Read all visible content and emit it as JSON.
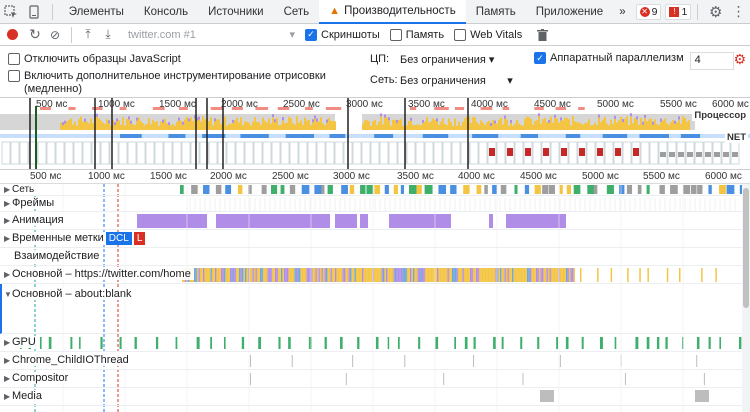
{
  "tabs": {
    "items": [
      "Элементы",
      "Консоль",
      "Источники",
      "Сеть",
      "Производительность",
      "Память",
      "Приложение"
    ],
    "active_index": 4,
    "errors_count": "9",
    "issues_count": "1"
  },
  "toolbar": {
    "url_placeholder": "twitter.com #1",
    "screenshots_label": "Скриншоты",
    "memory_label": "Память",
    "webvitals_label": "Web Vitals"
  },
  "settings": {
    "disable_js_samples": "Отключить образцы JavaScript",
    "advanced_paint_line1": "Включить дополнительное инструментирование отрисовки",
    "advanced_paint_line2": "(медленно)",
    "cpu_label": "ЦП:",
    "cpu_value": "Без ограничения",
    "network_label": "Сеть:",
    "network_value": "Без ограничения",
    "hw_concurrency_label": "Аппаратный параллелизм",
    "hw_concurrency_value": "4"
  },
  "overview": {
    "ticks": [
      "500 мс",
      "1000 мс",
      "1500 мс",
      "2000 мс",
      "2500 мс",
      "3000 мс",
      "3500 мс",
      "4000 мс",
      "4500 мс",
      "5000 мс",
      "5500 мс",
      "6000 мс"
    ],
    "cpu_label": "Процессор",
    "net_label": "NET"
  },
  "ruler": {
    "ticks": [
      "500 мс",
      "1000 мс",
      "1500 мс",
      "2000 мс",
      "2500 мс",
      "3000 мс",
      "3500 мс",
      "4000 мс",
      "4500 мс",
      "5000 мс",
      "5500 мс",
      "6000 мс"
    ]
  },
  "tracks": {
    "network": "Сеть",
    "frames": "Фреймы",
    "animation": "Анимация",
    "timings": "Временные метки",
    "dcl": "DCL",
    "l": "L",
    "interactions": "Взаимодействие",
    "main_twitter": "Основной – https://twitter.com/home",
    "main_blank": "Основной – about:blank",
    "gpu": "GPU",
    "chrome_child": "Chrome_ChildIOThread",
    "compositor": "Compositor",
    "media": "Media"
  },
  "colors": {
    "accent": "#1a73e8",
    "scripting": "#f4c542",
    "rendering": "#b08ee8",
    "gpu": "#3fb06b",
    "error": "#d93025"
  }
}
